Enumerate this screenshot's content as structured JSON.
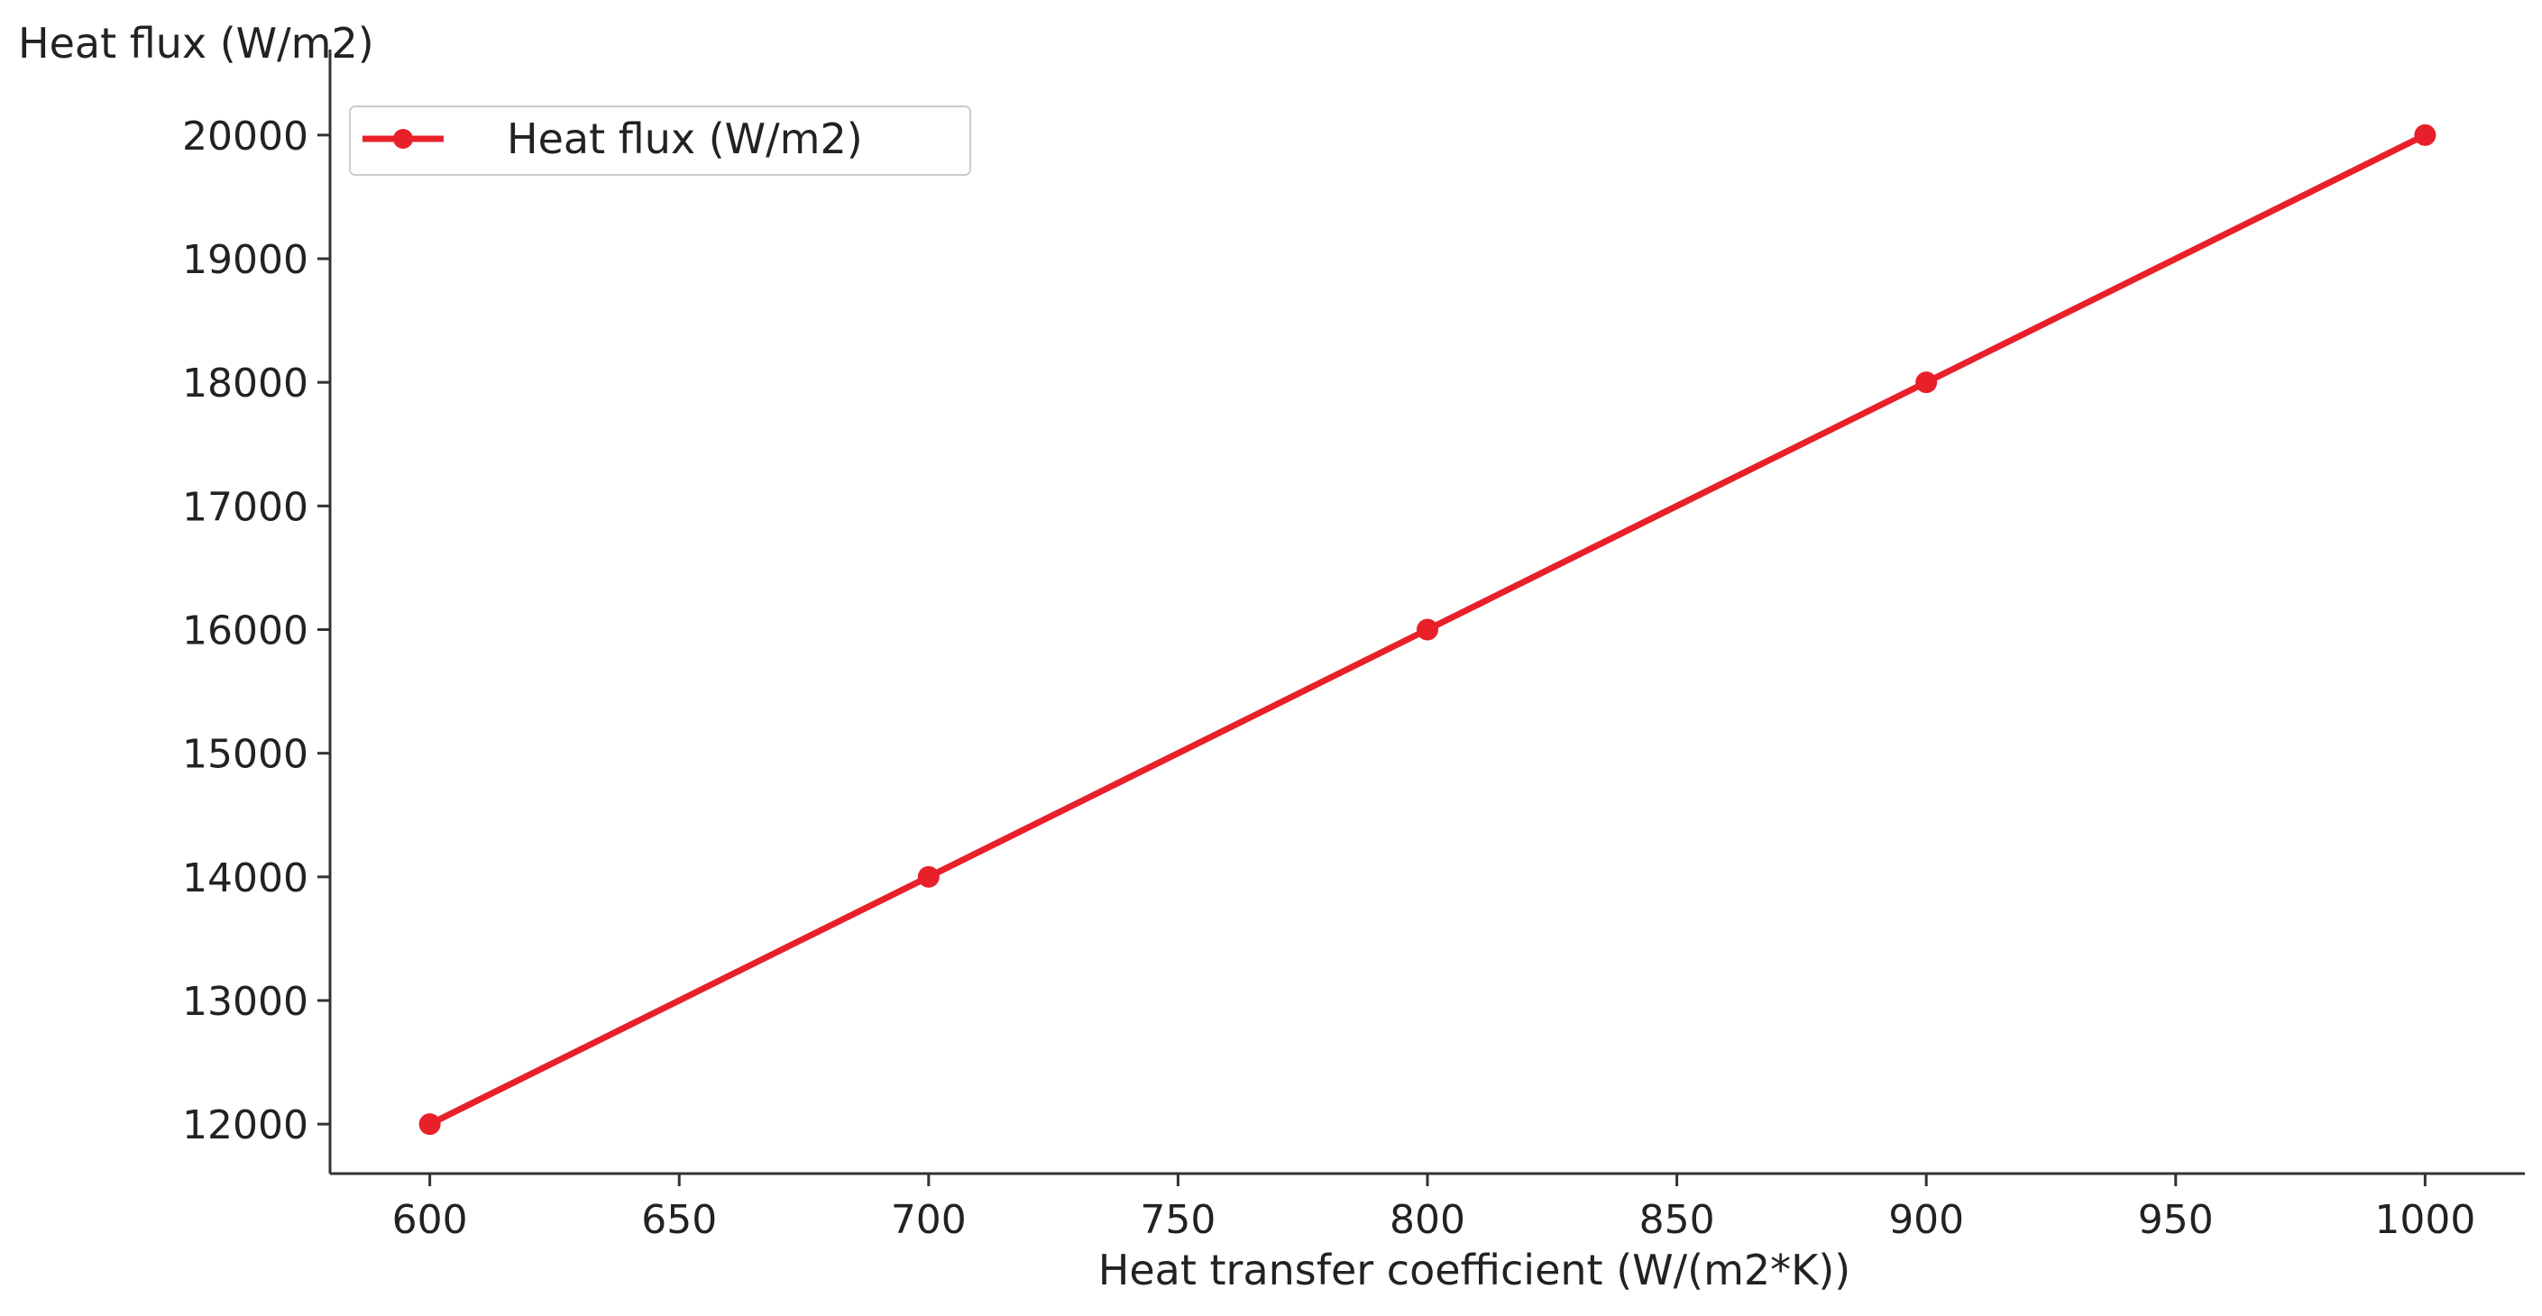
{
  "chart_data": {
    "type": "line",
    "title": "",
    "xlabel": "Heat transfer coefficient (W/(m2*K))",
    "ylabel": "Heat flux (W/m2)",
    "x": [
      600,
      700,
      800,
      900,
      1000
    ],
    "series": [
      {
        "name": "Heat flux (W/m2)",
        "values": [
          12000,
          14000,
          16000,
          18000,
          20000
        ],
        "color": "#e8202a",
        "marker": "circle"
      }
    ],
    "xlim": [
      580,
      1020
    ],
    "ylim": [
      11600,
      20400
    ],
    "xticks": [
      600,
      650,
      700,
      750,
      800,
      850,
      900,
      950,
      1000
    ],
    "yticks": [
      12000,
      13000,
      14000,
      15000,
      16000,
      17000,
      18000,
      19000,
      20000
    ],
    "grid": false,
    "legend_position": "top-left"
  }
}
